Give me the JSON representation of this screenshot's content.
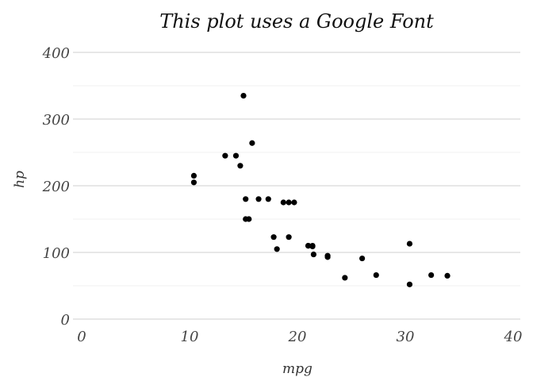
{
  "chart_data": {
    "type": "scatter",
    "title": "This plot uses a Google Font",
    "xlabel": "mpg",
    "ylabel": "hp",
    "xlim": [
      0,
      40
    ],
    "ylim": [
      0,
      400
    ],
    "x_ticks": [
      0,
      10,
      20,
      30,
      40
    ],
    "y_ticks": [
      0,
      100,
      200,
      300,
      400
    ],
    "x_tick_labels": [
      "0",
      "10",
      "20",
      "30",
      "40"
    ],
    "y_tick_labels": [
      "0",
      "100",
      "200",
      "300",
      "400"
    ],
    "grid": true,
    "point_color": "#000000",
    "points": [
      {
        "x": 21.0,
        "y": 110
      },
      {
        "x": 21.0,
        "y": 110
      },
      {
        "x": 22.8,
        "y": 93
      },
      {
        "x": 21.4,
        "y": 110
      },
      {
        "x": 18.7,
        "y": 175
      },
      {
        "x": 18.1,
        "y": 105
      },
      {
        "x": 14.3,
        "y": 245
      },
      {
        "x": 24.4,
        "y": 62
      },
      {
        "x": 22.8,
        "y": 95
      },
      {
        "x": 19.2,
        "y": 123
      },
      {
        "x": 17.8,
        "y": 123
      },
      {
        "x": 16.4,
        "y": 180
      },
      {
        "x": 17.3,
        "y": 180
      },
      {
        "x": 15.2,
        "y": 180
      },
      {
        "x": 10.4,
        "y": 205
      },
      {
        "x": 10.4,
        "y": 215
      },
      {
        "x": 14.7,
        "y": 230
      },
      {
        "x": 32.4,
        "y": 66
      },
      {
        "x": 30.4,
        "y": 52
      },
      {
        "x": 33.9,
        "y": 65
      },
      {
        "x": 21.5,
        "y": 97
      },
      {
        "x": 15.5,
        "y": 150
      },
      {
        "x": 15.2,
        "y": 150
      },
      {
        "x": 13.3,
        "y": 245
      },
      {
        "x": 19.2,
        "y": 175
      },
      {
        "x": 27.3,
        "y": 66
      },
      {
        "x": 26.0,
        "y": 91
      },
      {
        "x": 30.4,
        "y": 113
      },
      {
        "x": 15.8,
        "y": 264
      },
      {
        "x": 19.7,
        "y": 175
      },
      {
        "x": 15.0,
        "y": 335
      },
      {
        "x": 21.4,
        "y": 109
      }
    ]
  }
}
